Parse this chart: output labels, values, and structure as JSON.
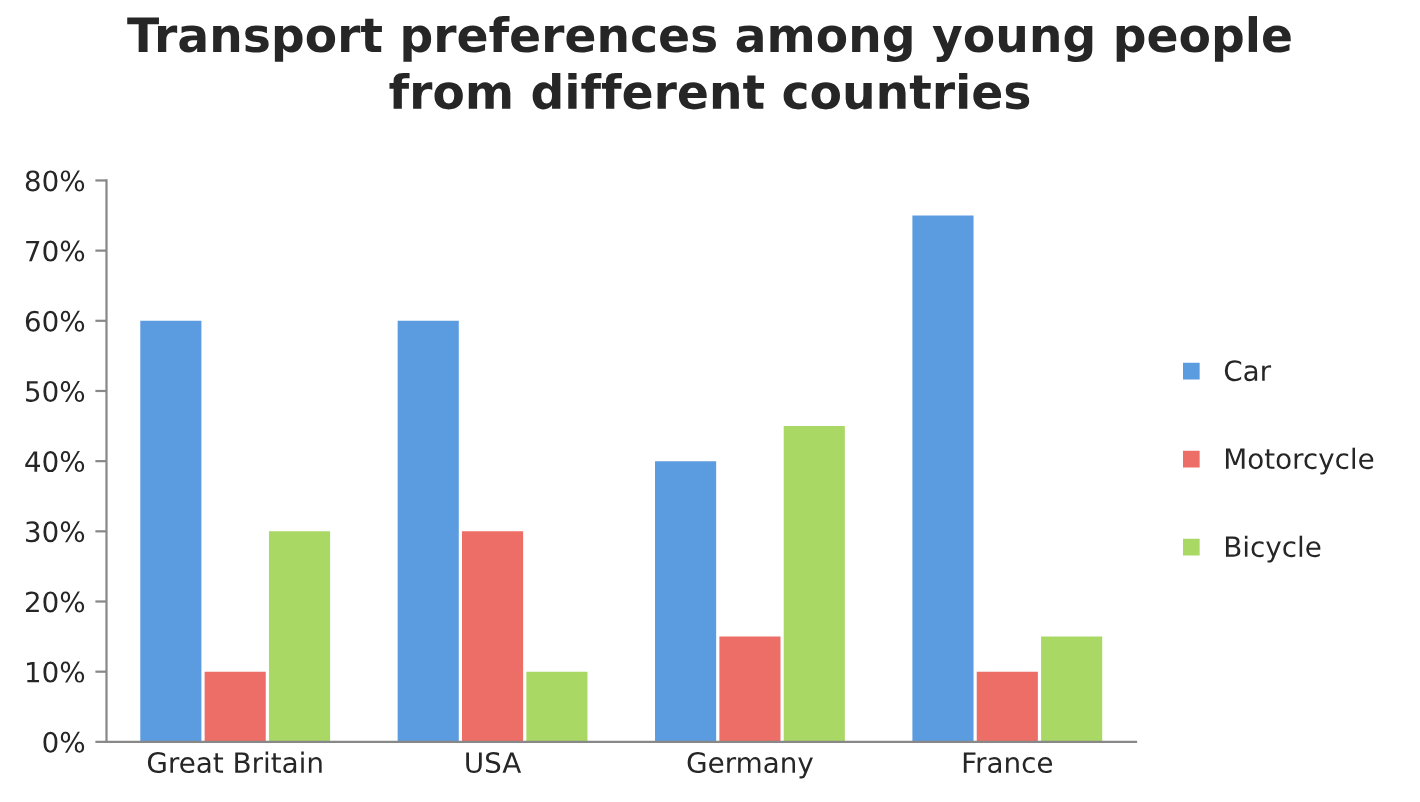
{
  "chart_data": {
    "type": "bar",
    "title": "Transport preferences among young people\nfrom different countries",
    "categories": [
      "Great Britain",
      "USA",
      "Germany",
      "France"
    ],
    "series": [
      {
        "name": "Car",
        "color": "#5b9be0",
        "values": [
          60,
          60,
          40,
          75
        ]
      },
      {
        "name": "Motorcycle",
        "color": "#ec6e66",
        "values": [
          10,
          30,
          15,
          10
        ]
      },
      {
        "name": "Bicycle",
        "color": "#a9d865",
        "values": [
          30,
          10,
          45,
          15
        ]
      }
    ],
    "ylim": [
      0,
      80
    ],
    "yticks": [
      {
        "value": 0,
        "label": "0%"
      },
      {
        "value": 10,
        "label": "10%"
      },
      {
        "value": 20,
        "label": "20%"
      },
      {
        "value": 30,
        "label": "30%"
      },
      {
        "value": 40,
        "label": "40%"
      },
      {
        "value": 50,
        "label": "50%"
      },
      {
        "value": 60,
        "label": "60%"
      },
      {
        "value": 70,
        "label": "70%"
      },
      {
        "value": 80,
        "label": "80%"
      }
    ],
    "grid": false,
    "legend": "right"
  }
}
